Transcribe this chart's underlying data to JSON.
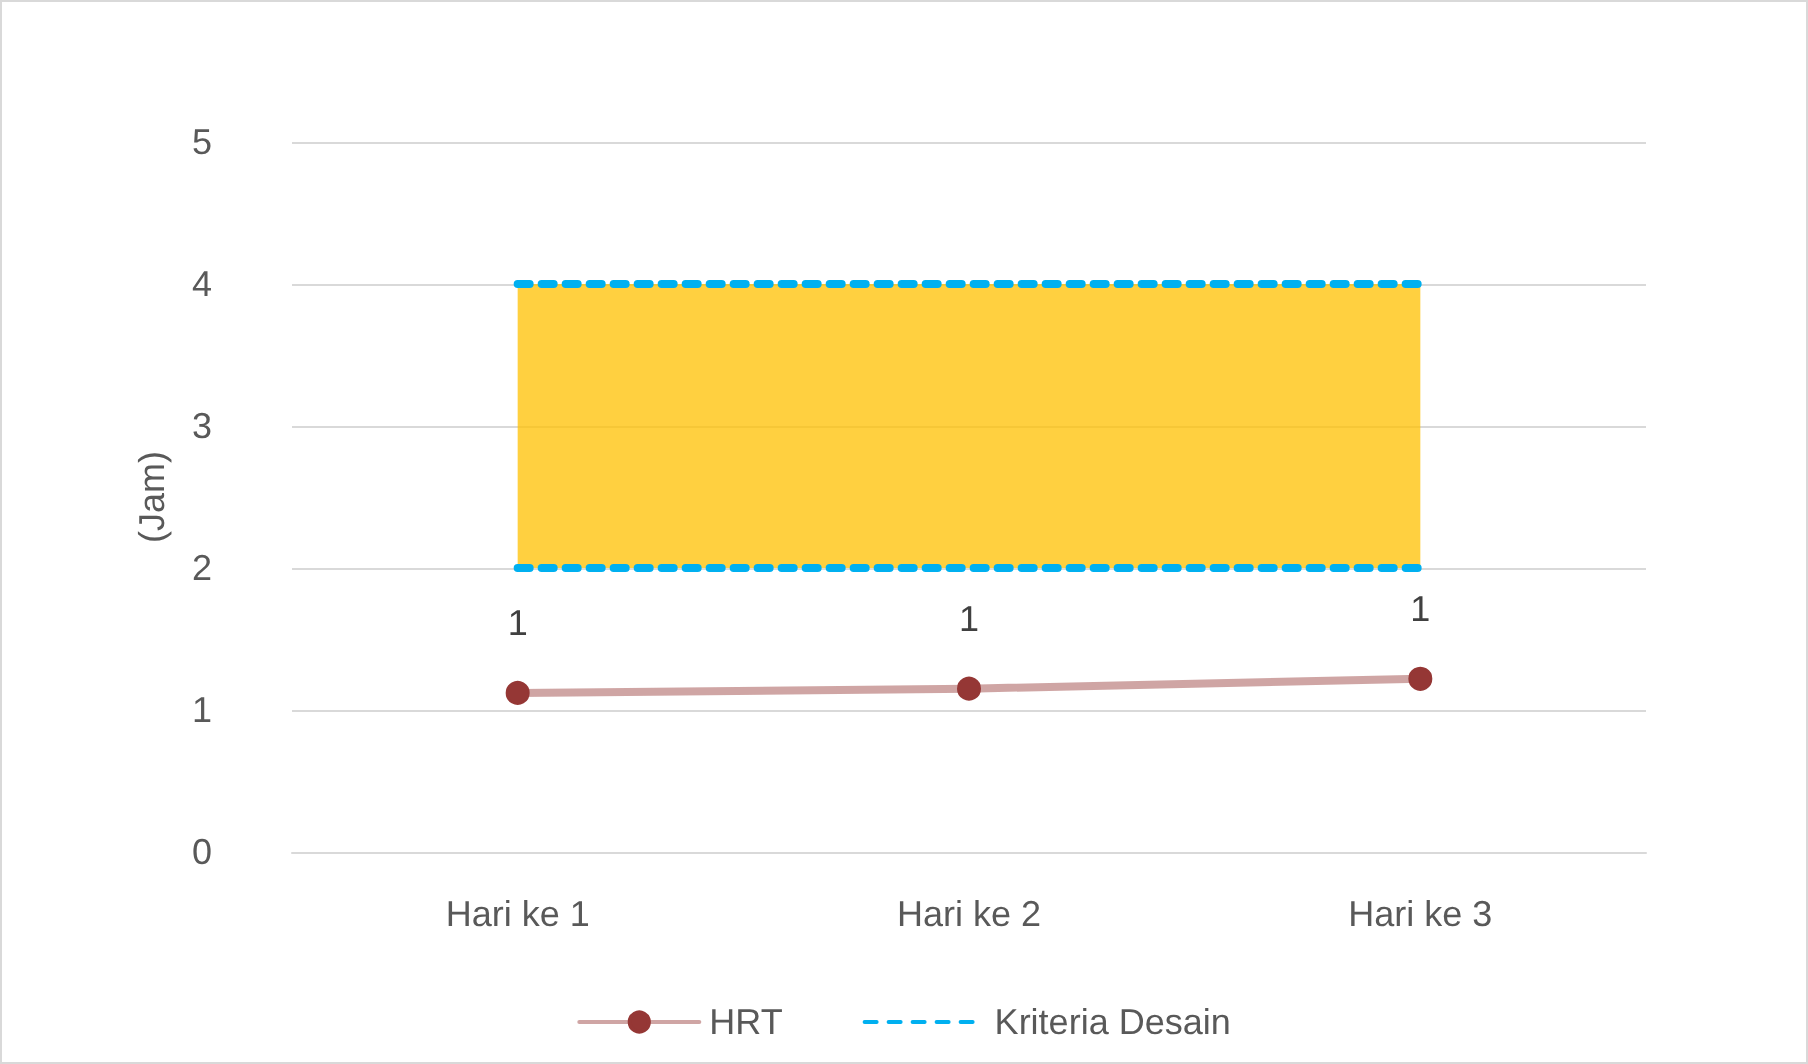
{
  "chart_data": {
    "type": "line",
    "ylabel": "(Jam)",
    "categories": [
      "Hari ke 1",
      "Hari ke 2",
      "Hari ke 3"
    ],
    "series": [
      {
        "name": "HRT",
        "color": "#953735",
        "marker": "circle",
        "line_style": "solid",
        "values": [
          1.12,
          1.15,
          1.22
        ],
        "value_labels": [
          "1",
          "1",
          "1"
        ]
      },
      {
        "name": "Kriteria Desain",
        "color": "#00b0f0",
        "marker": "none",
        "line_style": "dashed",
        "values": [
          4,
          4,
          4
        ]
      },
      {
        "color": "#00b0f0",
        "marker": "none",
        "line_style": "dashed",
        "values": [
          2,
          2,
          2
        ]
      }
    ],
    "bands": [
      {
        "axis": "y",
        "from": 2,
        "to": 4,
        "color": "#ffc000"
      }
    ],
    "ylim": [
      0,
      5
    ],
    "yticks": [
      0,
      1,
      2,
      3,
      4,
      5
    ],
    "grid": "y",
    "legend": "bottom"
  }
}
